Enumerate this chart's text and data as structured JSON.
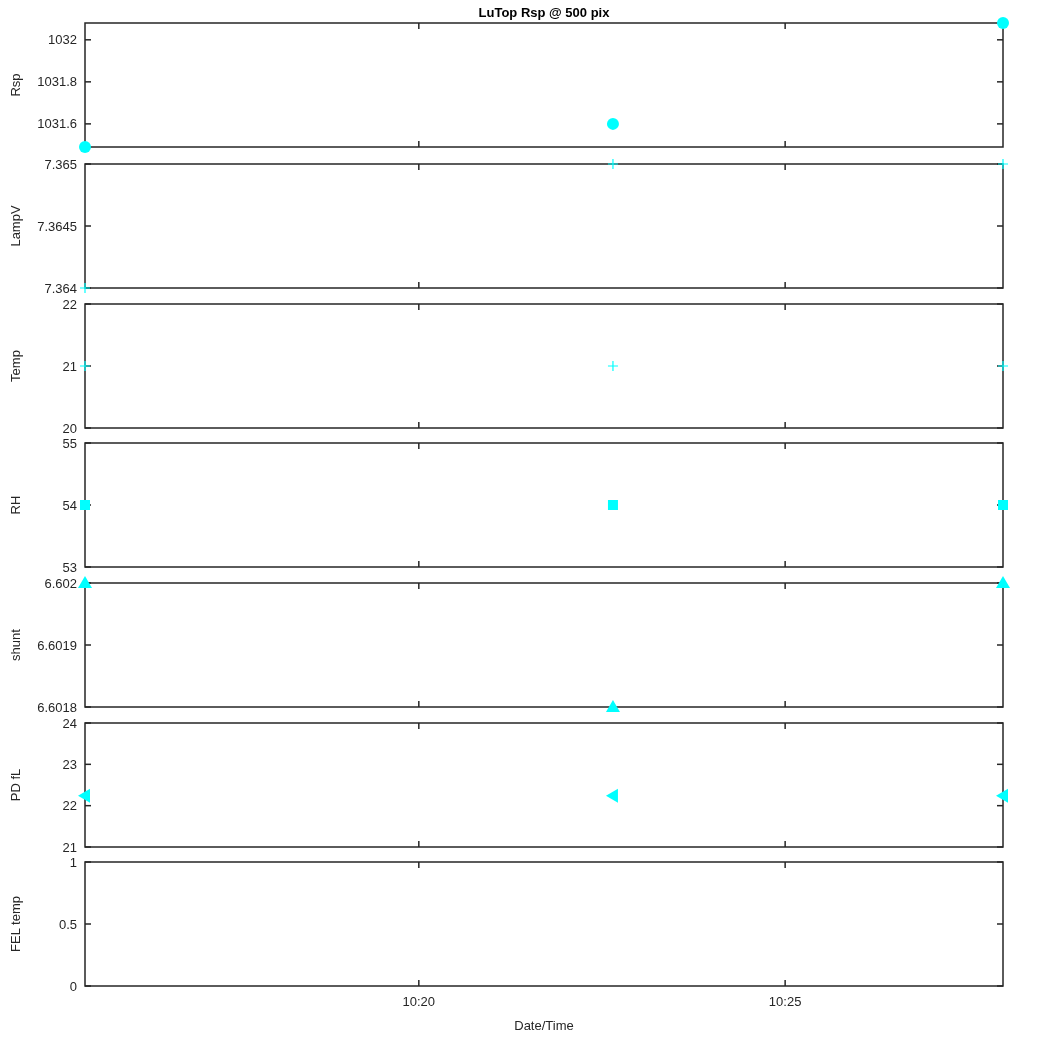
{
  "chart_data": [
    {
      "type": "scatter",
      "title": "LuTop Rsp @ 500 pix",
      "ylabel": "Rsp",
      "x": [
        10.2573,
        10.3775,
        10.4663
      ],
      "values": [
        1031.49,
        1031.6,
        1032.08
      ],
      "color": "#00ffff",
      "marker": "circle",
      "xlim": [
        10.2573,
        10.4663
      ],
      "ylim": [
        1031.49,
        1032.08
      ],
      "yticks": [
        1031.6,
        1031.8,
        1032
      ],
      "tick_labels": "y"
    },
    {
      "type": "scatter",
      "ylabel": "LampV",
      "x": [
        10.2573,
        10.3775,
        10.4663
      ],
      "values": [
        7.364,
        7.365,
        7.365
      ],
      "color": "#00ffff",
      "marker": "cross",
      "xlim": [
        10.2573,
        10.4663
      ],
      "ylim": [
        7.364,
        7.365
      ],
      "yticks": [
        7.364,
        7.3645,
        7.365
      ],
      "tick_labels": "y"
    },
    {
      "type": "scatter",
      "ylabel": "Temp",
      "x": [
        10.2573,
        10.3775,
        10.4663
      ],
      "values": [
        21,
        21,
        21
      ],
      "color": "#00ffff",
      "marker": "cross",
      "xlim": [
        10.2573,
        10.4663
      ],
      "ylim": [
        20,
        22
      ],
      "yticks": [
        20,
        21,
        22
      ],
      "tick_labels": "y"
    },
    {
      "type": "scatter",
      "ylabel": "RH",
      "x": [
        10.2573,
        10.3775,
        10.4663
      ],
      "values": [
        54,
        54,
        54
      ],
      "color": "#00ffff",
      "marker": "square",
      "xlim": [
        10.2573,
        10.4663
      ],
      "ylim": [
        53,
        55
      ],
      "yticks": [
        53,
        54,
        55
      ],
      "tick_labels": "y"
    },
    {
      "type": "scatter",
      "ylabel": "shunt",
      "x": [
        10.2573,
        10.3775,
        10.4663
      ],
      "values": [
        6.602,
        6.6018,
        6.602
      ],
      "color": "#00ffff",
      "marker": "triangle",
      "xlim": [
        10.2573,
        10.4663
      ],
      "ylim": [
        6.6018,
        6.602
      ],
      "yticks": [
        6.6018,
        6.6019,
        6.602
      ],
      "tick_labels": "y"
    },
    {
      "type": "scatter",
      "ylabel": "PD fL",
      "x": [
        10.2573,
        10.3775,
        10.4663
      ],
      "values": [
        22.24,
        22.24,
        22.24
      ],
      "color": "#00ffff",
      "marker": "triangle",
      "xlim": [
        10.2573,
        10.4663
      ],
      "ylim": [
        21,
        24
      ],
      "yticks": [
        21,
        22,
        23,
        24
      ],
      "tick_labels": "y"
    },
    {
      "type": "scatter",
      "ylabel": "FEL temp",
      "xlabel": "Date/Time",
      "xlim": [
        10.2573,
        10.4663
      ],
      "xticks": [
        {
          "value": 10.3333,
          "label": "10:20"
        },
        {
          "value": 10.4167,
          "label": "10:25"
        }
      ],
      "ylim": [
        0,
        1
      ],
      "yticks": [
        0,
        0.5,
        1
      ]
    }
  ]
}
